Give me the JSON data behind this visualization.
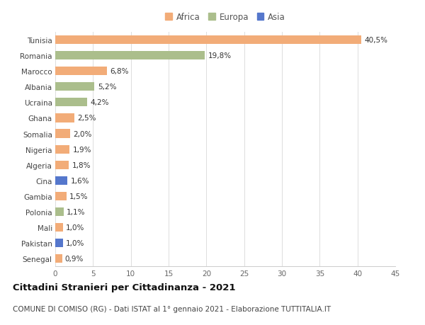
{
  "countries": [
    "Tunisia",
    "Romania",
    "Marocco",
    "Albania",
    "Ucraina",
    "Ghana",
    "Somalia",
    "Nigeria",
    "Algeria",
    "Cina",
    "Gambia",
    "Polonia",
    "Mali",
    "Pakistan",
    "Senegal"
  ],
  "values": [
    40.5,
    19.8,
    6.8,
    5.2,
    4.2,
    2.5,
    2.0,
    1.9,
    1.8,
    1.6,
    1.5,
    1.1,
    1.0,
    1.0,
    0.9
  ],
  "continents": [
    "Africa",
    "Europa",
    "Africa",
    "Europa",
    "Europa",
    "Africa",
    "Africa",
    "Africa",
    "Africa",
    "Asia",
    "Africa",
    "Europa",
    "Africa",
    "Asia",
    "Africa"
  ],
  "labels": [
    "40,5%",
    "19,8%",
    "6,8%",
    "5,2%",
    "4,2%",
    "2,5%",
    "2,0%",
    "1,9%",
    "1,8%",
    "1,6%",
    "1,5%",
    "1,1%",
    "1,0%",
    "1,0%",
    "0,9%"
  ],
  "colors": {
    "Africa": "#F2AC78",
    "Europa": "#ABBE8C",
    "Asia": "#5577CC"
  },
  "xlim": [
    0,
    45
  ],
  "xticks": [
    0,
    5,
    10,
    15,
    20,
    25,
    30,
    35,
    40,
    45
  ],
  "title": "Cittadini Stranieri per Cittadinanza - 2021",
  "subtitle": "COMUNE DI COMISO (RG) - Dati ISTAT al 1° gennaio 2021 - Elaborazione TUTTITALIA.IT",
  "background_color": "#ffffff",
  "bar_height": 0.55,
  "label_fontsize": 7.5,
  "ytick_fontsize": 7.5,
  "xtick_fontsize": 7.5,
  "title_fontsize": 9.5,
  "subtitle_fontsize": 7.5
}
